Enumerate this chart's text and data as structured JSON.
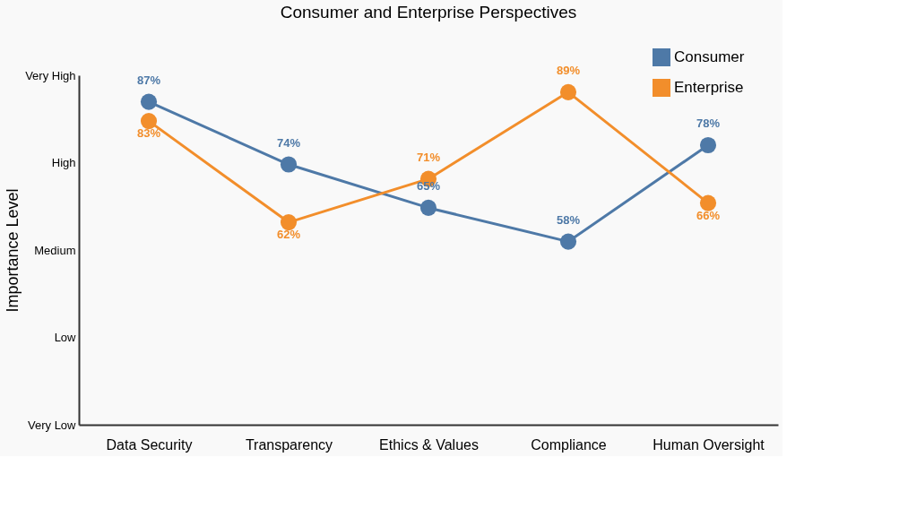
{
  "chart_data": {
    "type": "line",
    "title": "Consumer and Enterprise Perspectives",
    "ylabel": "Importance Level",
    "categories": [
      "Data Security",
      "Transparency",
      "Ethics & Values",
      "Compliance",
      "Human Oversight"
    ],
    "series": [
      {
        "name": "Consumer",
        "color": "#4e79a7",
        "values": [
          87,
          74,
          65,
          58,
          78
        ],
        "value_labels": [
          "87%",
          "74%",
          "65%",
          "58%",
          "78%"
        ]
      },
      {
        "name": "Enterprise",
        "color": "#f28e2b",
        "values": [
          83,
          62,
          71,
          89,
          66
        ],
        "value_labels": [
          "83%",
          "62%",
          "71%",
          "89%",
          "66%"
        ]
      }
    ],
    "ylim": [
      20,
      92.5
    ],
    "y_categories": [
      "Very High",
      "High",
      "Medium",
      "Low",
      "Very Low"
    ],
    "marker": "circle",
    "line_style": "solid",
    "grid": false,
    "legend": "top right"
  }
}
